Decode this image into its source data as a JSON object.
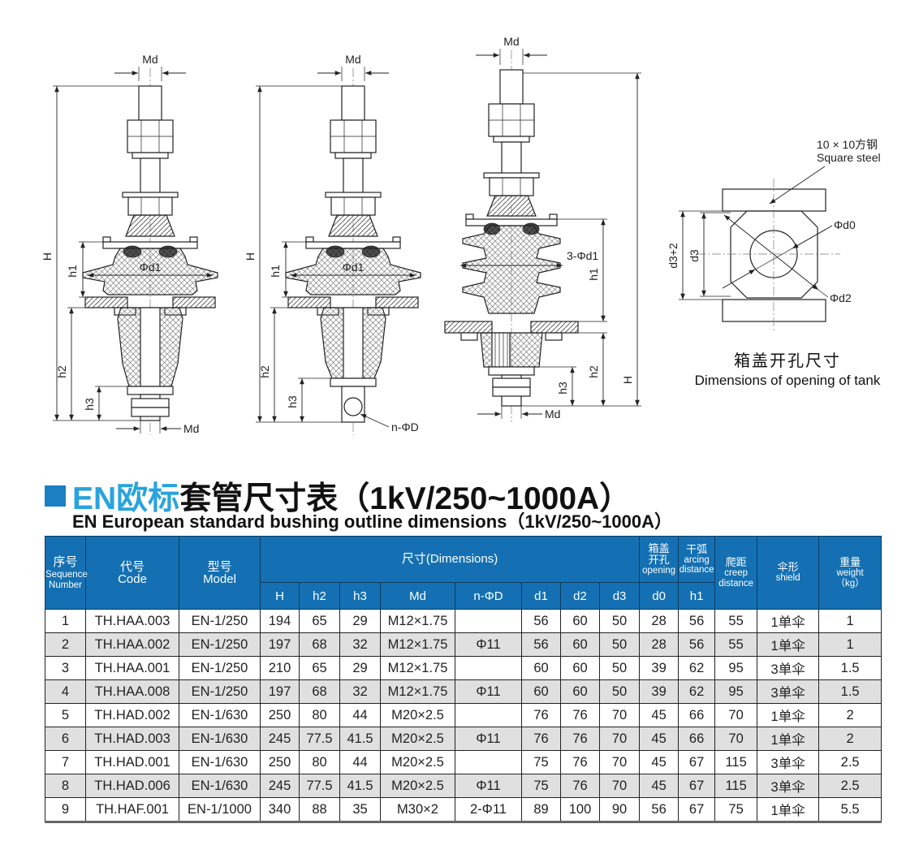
{
  "title": {
    "highlight": "EN欧标",
    "rest": "套管尺寸表（1kV/250~1000A）",
    "subtitle": "EN European standard bushing outline dimensions（1kV/250~1000A）"
  },
  "colors": {
    "accent_blue": "#29a3dc",
    "header_bg": "#1470b2",
    "row_alt": "#e0e0e0"
  },
  "drawings": {
    "b1": {
      "md_top": "Md",
      "h": "H",
      "h1": "h1",
      "phi_d1": "Φd1",
      "h2": "h2",
      "h3": "h3",
      "md_bottom": "Md"
    },
    "b2": {
      "md_top": "Md",
      "h": "H",
      "h1": "h1",
      "phi_d1": "Φd1",
      "h2": "h2",
      "h3": "h3",
      "n_phi_d": "n-ΦD"
    },
    "b3": {
      "md_top": "Md",
      "h": "H",
      "h1": "h1",
      "shed_count": "3-Φd1",
      "h2": "h2",
      "h3": "h3",
      "md_bottom": "Md"
    },
    "tank": {
      "steel_cn": "10 × 10方钢",
      "steel_en": "Square steel",
      "phi_d0": "Φd0",
      "phi_d2": "Φd2",
      "d3": "d3",
      "d3p2": "d3+2",
      "caption_cn": "箱盖开孔尺寸",
      "caption_en": "Dimensions of opening of tank"
    }
  },
  "table": {
    "header": {
      "seq_cn": "序号",
      "seq_en1": "Sequence",
      "seq_en2": "Number",
      "code_cn": "代号",
      "code_en": "Code",
      "model_cn": "型号",
      "model_en": "Model",
      "dims": "尺寸(Dimensions)",
      "opening_cn1": "箱盖",
      "opening_cn2": "开孔",
      "opening_en": "opening",
      "arcing_cn": "干弧",
      "arcing_en1": "arcing",
      "arcing_en2": "distance",
      "creep_cn": "爬距",
      "creep_en1": "creep",
      "creep_en2": "distance",
      "shield_cn": "伞形",
      "shield_en": "shield",
      "weight_cn": "重量",
      "weight_en": "weight",
      "weight_unit": "（kg）",
      "sub": [
        "H",
        "h2",
        "h3",
        "Md",
        "n-ΦD",
        "d1",
        "d2",
        "d3",
        "d0",
        "h1"
      ]
    },
    "rows": [
      [
        "1",
        "TH.HAA.003",
        "EN-1/250",
        "194",
        "65",
        "29",
        "M12×1.75",
        "",
        "56",
        "60",
        "50",
        "28",
        "56",
        "55",
        "1单伞",
        "1"
      ],
      [
        "2",
        "TH.HAA.002",
        "EN-1/250",
        "197",
        "68",
        "32",
        "M12×1.75",
        "Φ11",
        "56",
        "60",
        "50",
        "28",
        "56",
        "55",
        "1单伞",
        "1"
      ],
      [
        "3",
        "TH.HAA.001",
        "EN-1/250",
        "210",
        "65",
        "29",
        "M12×1.75",
        "",
        "60",
        "60",
        "50",
        "39",
        "62",
        "95",
        "3单伞",
        "1.5"
      ],
      [
        "4",
        "TH.HAA.008",
        "EN-1/250",
        "197",
        "68",
        "32",
        "M12×1.75",
        "Φ11",
        "60",
        "60",
        "50",
        "39",
        "62",
        "95",
        "3单伞",
        "1.5"
      ],
      [
        "5",
        "TH.HAD.002",
        "EN-1/630",
        "250",
        "80",
        "44",
        "M20×2.5",
        "",
        "76",
        "76",
        "70",
        "45",
        "66",
        "70",
        "1单伞",
        "2"
      ],
      [
        "6",
        "TH.HAD.003",
        "EN-1/630",
        "245",
        "77.5",
        "41.5",
        "M20×2.5",
        "Φ11",
        "76",
        "76",
        "70",
        "45",
        "66",
        "70",
        "1单伞",
        "2"
      ],
      [
        "7",
        "TH.HAD.001",
        "EN-1/630",
        "250",
        "80",
        "44",
        "M20×2.5",
        "",
        "75",
        "76",
        "70",
        "45",
        "67",
        "115",
        "3单伞",
        "2.5"
      ],
      [
        "8",
        "TH.HAD.006",
        "EN-1/630",
        "245",
        "77.5",
        "41.5",
        "M20×2.5",
        "Φ11",
        "75",
        "76",
        "70",
        "45",
        "67",
        "115",
        "3单伞",
        "2.5"
      ],
      [
        "9",
        "TH.HAF.001",
        "EN-1/1000",
        "340",
        "88",
        "35",
        "M30×2",
        "2-Φ11",
        "89",
        "100",
        "90",
        "56",
        "67",
        "75",
        "1单伞",
        "5.5"
      ]
    ]
  }
}
